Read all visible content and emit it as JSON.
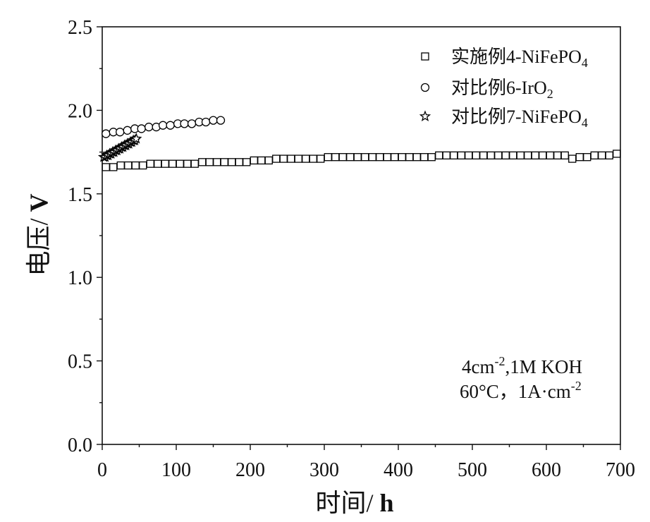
{
  "chart_data": {
    "type": "scatter",
    "xlabel": "时间/",
    "xlabel_unit": "h",
    "ylabel": "电压/",
    "ylabel_unit": "V",
    "xlim": [
      0,
      700
    ],
    "ylim": [
      0,
      2.5
    ],
    "xticks": [
      0,
      100,
      200,
      300,
      400,
      500,
      600,
      700
    ],
    "xtick_labels": [
      "0",
      "100",
      "200",
      "300",
      "400",
      "500",
      "600",
      "700"
    ],
    "yticks": [
      0,
      0.5,
      1.0,
      1.5,
      2.0,
      2.5
    ],
    "ytick_labels": [
      "0.0",
      "0.5",
      "1.0",
      "1.5",
      "2.0",
      "2.5"
    ],
    "minor_ticks": true,
    "grid": false,
    "legend": "top-right",
    "series": [
      {
        "name": "实施例4-NiFePO",
        "name_subscript": "4",
        "marker": "open-square",
        "color": "#000000",
        "x": [
          5,
          15,
          25,
          35,
          45,
          55,
          65,
          75,
          85,
          95,
          105,
          115,
          125,
          135,
          145,
          155,
          165,
          175,
          185,
          195,
          205,
          215,
          225,
          235,
          245,
          255,
          265,
          275,
          285,
          295,
          305,
          315,
          325,
          335,
          345,
          355,
          365,
          375,
          385,
          395,
          405,
          415,
          425,
          435,
          445,
          455,
          465,
          475,
          485,
          495,
          505,
          515,
          525,
          535,
          545,
          555,
          565,
          575,
          585,
          595,
          605,
          615,
          625,
          635,
          645,
          655,
          665,
          675,
          685,
          695
        ],
        "y": [
          1.66,
          1.66,
          1.67,
          1.67,
          1.67,
          1.67,
          1.68,
          1.68,
          1.68,
          1.68,
          1.68,
          1.68,
          1.68,
          1.69,
          1.69,
          1.69,
          1.69,
          1.69,
          1.69,
          1.69,
          1.7,
          1.7,
          1.7,
          1.71,
          1.71,
          1.71,
          1.71,
          1.71,
          1.71,
          1.71,
          1.72,
          1.72,
          1.72,
          1.72,
          1.72,
          1.72,
          1.72,
          1.72,
          1.72,
          1.72,
          1.72,
          1.72,
          1.72,
          1.72,
          1.72,
          1.73,
          1.73,
          1.73,
          1.73,
          1.73,
          1.73,
          1.73,
          1.73,
          1.73,
          1.73,
          1.73,
          1.73,
          1.73,
          1.73,
          1.73,
          1.73,
          1.73,
          1.73,
          1.71,
          1.72,
          1.72,
          1.73,
          1.73,
          1.73,
          1.74
        ]
      },
      {
        "name": "对比例6-IrO",
        "name_subscript": "2",
        "marker": "open-circle",
        "color": "#000000",
        "x": [
          5,
          15,
          24,
          34,
          44,
          53,
          63,
          73,
          82,
          92,
          102,
          111,
          121,
          131,
          140,
          150,
          160
        ],
        "y": [
          1.86,
          1.87,
          1.87,
          1.88,
          1.89,
          1.89,
          1.9,
          1.9,
          1.91,
          1.91,
          1.92,
          1.92,
          1.92,
          1.93,
          1.93,
          1.94,
          1.94
        ]
      },
      {
        "name": "对比例7-NiFePO",
        "name_subscript": "4",
        "marker": "open-star",
        "color": "#000000",
        "x": [
          2,
          4,
          6,
          8,
          10,
          12,
          14,
          16,
          18,
          20,
          22,
          24,
          26,
          28,
          30,
          32,
          34,
          36,
          38,
          40,
          42,
          44,
          46
        ],
        "y": [
          1.72,
          1.72,
          1.73,
          1.73,
          1.74,
          1.74,
          1.75,
          1.75,
          1.76,
          1.76,
          1.77,
          1.77,
          1.78,
          1.78,
          1.79,
          1.79,
          1.8,
          1.8,
          1.81,
          1.81,
          1.82,
          1.82,
          1.83
        ]
      }
    ],
    "annotations": [
      {
        "text": "4cm",
        "superscript": "-2",
        "text_after": ",1M KOH"
      },
      {
        "text": "60°C，1A·cm",
        "superscript": "-2"
      }
    ]
  }
}
